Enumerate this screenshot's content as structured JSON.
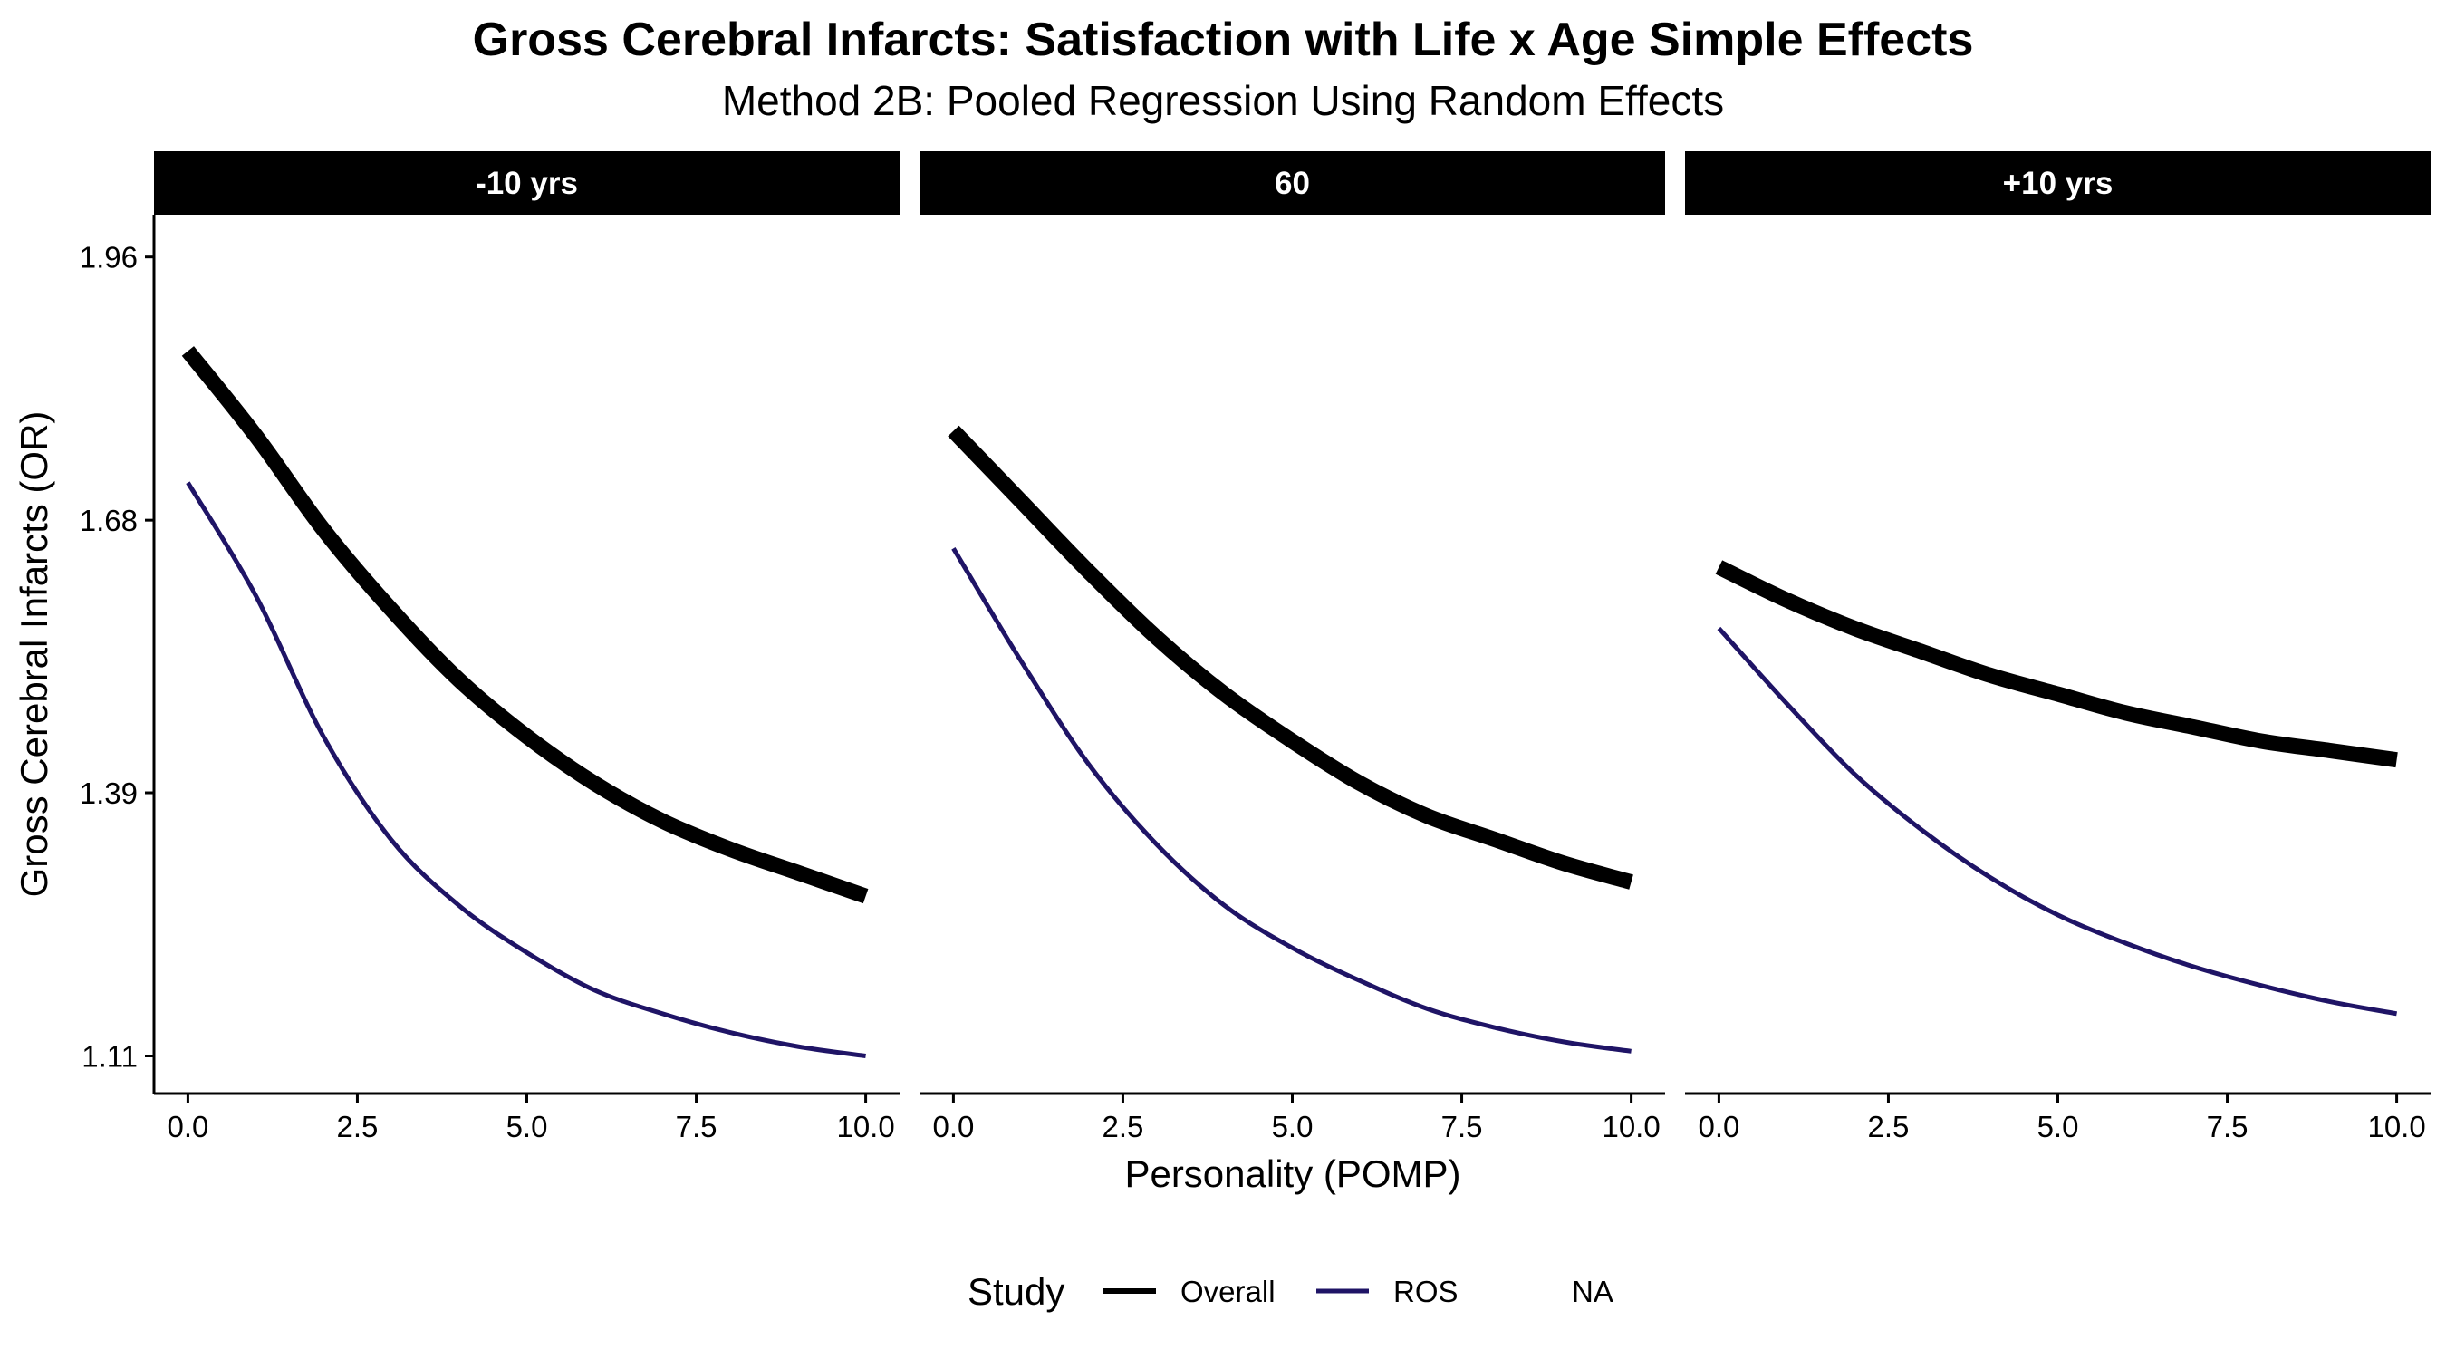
{
  "chart_data": {
    "type": "line",
    "title": "Gross Cerebral Infarcts: Satisfaction with Life x Age Simple Effects",
    "subtitle": "Method 2B: Pooled Regression Using Random Effects",
    "xlabel": "Personality (POMP)",
    "ylabel": "Gross Cerebral Infarcts (OR)",
    "x_ticks": [
      "0.0",
      "2.5",
      "5.0",
      "7.5",
      "10.0"
    ],
    "x_tick_values": [
      0,
      2.5,
      5,
      7.5,
      10
    ],
    "xlim": [
      -0.5,
      10.5
    ],
    "y_ticks": [
      "1.11",
      "1.39",
      "1.68",
      "1.96"
    ],
    "y_tick_values": [
      1.11,
      1.39,
      1.68,
      1.96
    ],
    "ylim": [
      1.07,
      2.005
    ],
    "grid": false,
    "legend": {
      "title": "Study",
      "position": "bottom",
      "entries": [
        {
          "label": "Overall",
          "color": "#000000",
          "line": "thick"
        },
        {
          "label": "ROS",
          "color": "#1f1466",
          "line": "thin"
        },
        {
          "label": "NA",
          "color": "",
          "line": "none"
        }
      ]
    },
    "panels": [
      {
        "strip": "-10 yrs",
        "series": [
          {
            "name": "Overall",
            "color": "#000000",
            "x": [
              0,
              1,
              2,
              3,
              4,
              5,
              6,
              7,
              8,
              9,
              10
            ],
            "y": [
              1.86,
              1.77,
              1.67,
              1.585,
              1.51,
              1.45,
              1.4,
              1.36,
              1.33,
              1.305,
              1.28
            ]
          },
          {
            "name": "ROS",
            "color": "#1f1466",
            "x": [
              0,
              1,
              2,
              3,
              4,
              5,
              6,
              7,
              8,
              9,
              10
            ],
            "y": [
              1.72,
              1.6,
              1.45,
              1.34,
              1.27,
              1.22,
              1.18,
              1.155,
              1.135,
              1.12,
              1.11
            ]
          }
        ]
      },
      {
        "strip": "60",
        "series": [
          {
            "name": "Overall",
            "color": "#000000",
            "x": [
              0,
              1,
              2,
              3,
              4,
              5,
              6,
              7,
              8,
              9,
              10
            ],
            "y": [
              1.775,
              1.7,
              1.625,
              1.555,
              1.495,
              1.445,
              1.4,
              1.365,
              1.34,
              1.315,
              1.295
            ]
          },
          {
            "name": "ROS",
            "color": "#1f1466",
            "x": [
              0,
              1,
              2,
              3,
              4,
              5,
              6,
              7,
              8,
              9,
              10
            ],
            "y": [
              1.65,
              1.53,
              1.42,
              1.335,
              1.27,
              1.225,
              1.19,
              1.16,
              1.14,
              1.125,
              1.115
            ]
          }
        ]
      },
      {
        "strip": "+10 yrs",
        "series": [
          {
            "name": "Overall",
            "color": "#000000",
            "x": [
              0,
              1,
              2,
              3,
              4,
              5,
              6,
              7,
              8,
              9,
              10
            ],
            "y": [
              1.63,
              1.595,
              1.565,
              1.54,
              1.515,
              1.495,
              1.475,
              1.46,
              1.445,
              1.435,
              1.425
            ]
          },
          {
            "name": "ROS",
            "color": "#1f1466",
            "x": [
              0,
              1,
              2,
              3,
              4,
              5,
              6,
              7,
              8,
              9,
              10
            ],
            "y": [
              1.565,
              1.485,
              1.41,
              1.35,
              1.3,
              1.26,
              1.23,
              1.205,
              1.185,
              1.168,
              1.155
            ]
          }
        ]
      }
    ]
  }
}
